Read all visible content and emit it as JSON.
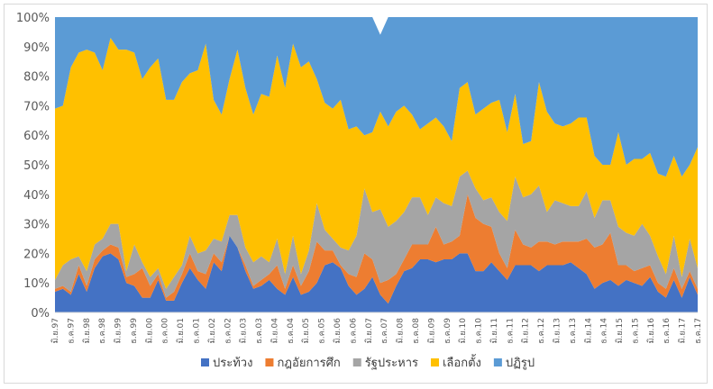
{
  "chart_data": {
    "type": "area",
    "stacked": true,
    "percent": true,
    "title": "",
    "xlabel": "",
    "ylabel": "",
    "ylim": [
      0,
      100
    ],
    "yticks": [
      "0%",
      "10%",
      "20%",
      "30%",
      "40%",
      "50%",
      "60%",
      "70%",
      "80%",
      "90%",
      "100%"
    ],
    "grid": false,
    "legend_position": "bottom",
    "x_tick_labels": [
      "มิ.ย.97",
      "ธ.ค.97",
      "มิ.ย.98",
      "ธ.ค.98",
      "มิ.ย.99",
      "ธ.ค.99",
      "มิ.ย.00",
      "ธ.ค.00",
      "มิ.ย.01",
      "ธ.ค.01",
      "มิ.ย.02",
      "ธ.ค.02",
      "มิ.ย.03",
      "ธ.ค.03",
      "มิ.ย.04",
      "ธ.ค.04",
      "มิ.ย.05",
      "ธ.ค.05",
      "มิ.ย.06",
      "ธ.ค.06",
      "มิ.ย.07",
      "ธ.ค.07",
      "มิ.ย.08",
      "ธ.ค.08",
      "มิ.ย.09",
      "ธ.ค.09",
      "มิ.ย.10",
      "ธ.ค.10",
      "มิ.ย.11",
      "ธ.ค.11",
      "มิ.ย.12",
      "ธ.ค.12",
      "มิ.ย.13",
      "ธ.ค.13",
      "มิ.ย.14",
      "ธ.ค.14",
      "มิ.ย.15",
      "ธ.ค.15",
      "มิ.ย.16",
      "ธ.ค.16",
      "มิ.ย.17",
      "ธ.ค.17"
    ],
    "series": [
      {
        "name": "ประท้วง",
        "color": "#4472c4",
        "values": [
          7,
          8,
          6,
          13,
          7,
          15,
          19,
          20,
          18,
          10,
          9,
          5,
          5,
          11,
          4,
          4,
          10,
          15,
          11,
          8,
          17,
          14,
          26,
          22,
          14,
          8,
          9,
          11,
          8,
          6,
          12,
          6,
          7,
          10,
          16,
          17,
          15,
          9,
          6,
          8,
          12,
          6,
          3,
          9,
          14,
          15,
          18,
          18,
          17,
          18,
          18,
          20,
          20,
          14,
          14,
          17,
          14,
          11,
          16,
          16,
          16,
          14,
          16,
          16,
          16,
          17,
          15,
          13,
          8,
          10,
          11,
          9,
          11,
          10,
          9,
          12,
          7,
          5,
          11,
          5,
          12,
          6
        ]
      },
      {
        "name": "กฎอัยการศึก",
        "color": "#ed7d31",
        "values": [
          1,
          1,
          1,
          3,
          2,
          3,
          2,
          3,
          4,
          2,
          4,
          10,
          4,
          2,
          1,
          3,
          3,
          5,
          3,
          5,
          3,
          3,
          0,
          0,
          2,
          1,
          2,
          2,
          8,
          2,
          4,
          3,
          7,
          14,
          5,
          4,
          1,
          4,
          6,
          12,
          6,
          4,
          8,
          4,
          4,
          8,
          5,
          5,
          12,
          5,
          6,
          6,
          20,
          18,
          16,
          12,
          6,
          4,
          12,
          7,
          6,
          10,
          8,
          7,
          8,
          7,
          9,
          12,
          14,
          13,
          16,
          7,
          5,
          4,
          6,
          4,
          3,
          3,
          4,
          3,
          2,
          2
        ]
      },
      {
        "name": "รัฐประหาร",
        "color": "#a5a5a5",
        "values": [
          3,
          7,
          11,
          3,
          5,
          5,
          4,
          7,
          8,
          2,
          10,
          2,
          3,
          2,
          3,
          5,
          3,
          6,
          6,
          8,
          5,
          7,
          7,
          11,
          6,
          8,
          8,
          4,
          9,
          5,
          10,
          4,
          7,
          13,
          7,
          4,
          6,
          8,
          14,
          22,
          16,
          25,
          18,
          18,
          16,
          16,
          16,
          10,
          10,
          14,
          12,
          20,
          8,
          10,
          8,
          10,
          14,
          16,
          18,
          16,
          18,
          19,
          10,
          15,
          13,
          12,
          12,
          16,
          10,
          15,
          11,
          13,
          11,
          12,
          15,
          10,
          9,
          5,
          11,
          4,
          11,
          7
        ]
      },
      {
        "name": "เลือกตั้ง",
        "color": "#ffc000",
        "values": [
          58,
          54,
          65,
          69,
          75,
          65,
          57,
          63,
          59,
          75,
          65,
          62,
          71,
          71,
          64,
          60,
          62,
          55,
          62,
          70,
          47,
          43,
          46,
          56,
          54,
          50,
          55,
          56,
          62,
          63,
          65,
          70,
          64,
          42,
          43,
          44,
          50,
          41,
          37,
          18,
          27,
          33,
          34,
          37,
          36,
          28,
          23,
          31,
          27,
          26,
          22,
          30,
          30,
          25,
          31,
          32,
          38,
          30,
          28,
          18,
          18,
          35,
          34,
          26,
          26,
          28,
          30,
          25,
          21,
          12,
          12,
          32,
          23,
          26,
          22,
          28,
          28,
          33,
          27,
          34,
          25,
          41
        ]
      },
      {
        "name": "ปฏิรูป",
        "color": "#5b9bd5",
        "values": [
          31,
          30,
          17,
          12,
          11,
          12,
          18,
          7,
          11,
          11,
          12,
          21,
          17,
          14,
          28,
          28,
          22,
          19,
          18,
          9,
          28,
          33,
          21,
          11,
          24,
          33,
          26,
          27,
          13,
          24,
          9,
          17,
          15,
          21,
          29,
          31,
          28,
          38,
          37,
          40,
          39,
          26,
          37,
          32,
          30,
          33,
          38,
          36,
          34,
          37,
          42,
          24,
          22,
          33,
          31,
          29,
          28,
          39,
          26,
          43,
          42,
          22,
          32,
          36,
          37,
          36,
          34,
          34,
          47,
          50,
          50,
          39,
          50,
          48,
          48,
          46,
          53,
          54,
          47,
          54,
          50,
          44
        ]
      }
    ]
  }
}
